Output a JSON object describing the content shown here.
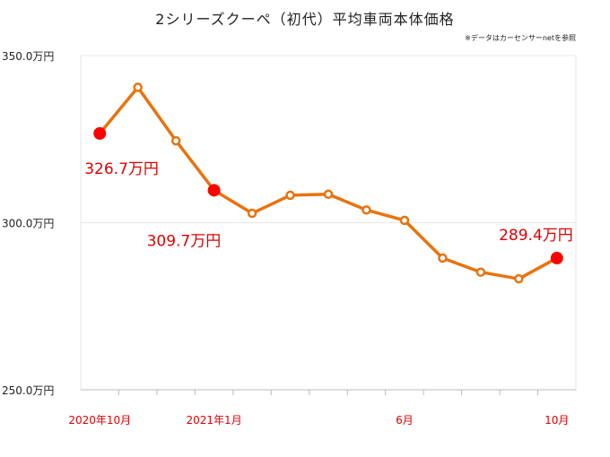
{
  "chart_data": {
    "type": "line",
    "title": "2シリーズクーペ（初代）平均車両本体価格",
    "note": "※データはカーセンサーnetを参照",
    "y_ticks": [
      "350.0万円",
      "300.0万円",
      "250.0万円"
    ],
    "y_tick_values": [
      350,
      300,
      250
    ],
    "ylim": [
      250,
      350
    ],
    "grid": true,
    "x_month_count": 13,
    "x_tick_labels": [
      {
        "label": "2020年10月",
        "index": 0
      },
      {
        "label": "2021年1月",
        "index": 3
      },
      {
        "label": "6月",
        "index": 8
      },
      {
        "label": "10月",
        "index": 12
      }
    ],
    "series": [
      {
        "values": [
          326.7,
          340.5,
          324.5,
          309.7,
          302.8,
          308.2,
          308.5,
          303.8,
          300.7,
          289.4,
          285.2,
          283.2,
          289.4
        ],
        "color": "#E8730E"
      }
    ],
    "highlight_points": [
      {
        "index": 0,
        "label": "326.7万円"
      },
      {
        "index": 3,
        "label": "309.7万円"
      },
      {
        "index": 12,
        "label": "289.4万円"
      }
    ],
    "highlight_color": "#FF0000",
    "label_color": "#E00000"
  }
}
